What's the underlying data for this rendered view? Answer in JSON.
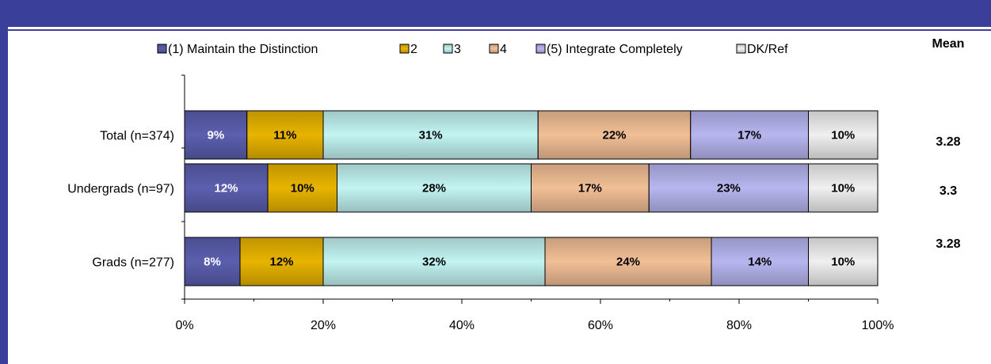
{
  "chart_data": {
    "type": "bar",
    "orientation": "horizontal",
    "stacked": true,
    "percent_stacked": true,
    "categories": [
      "Total (n=374)",
      "Undergrads (n=97)",
      "Grads (n=277)"
    ],
    "series": [
      {
        "name": "(1) Maintain the Distinction",
        "values": [
          9,
          12,
          8
        ],
        "color": "#5b5fae"
      },
      {
        "name": "2",
        "values": [
          11,
          10,
          12
        ],
        "color": "#e8b400"
      },
      {
        "name": "3",
        "values": [
          31,
          28,
          32
        ],
        "color": "#c2f4f2"
      },
      {
        "name": "4",
        "values": [
          22,
          17,
          24
        ],
        "color": "#f2bf96"
      },
      {
        "name": "(5) Integrate Completely",
        "values": [
          17,
          23,
          14
        ],
        "color": "#b7b6f0"
      },
      {
        "name": "DK/Ref",
        "values": [
          10,
          10,
          10
        ],
        "color": "#f0f0f0"
      }
    ],
    "data_labels": [
      [
        "9%",
        "11%",
        "31%",
        "22%",
        "17%",
        "10%"
      ],
      [
        "12%",
        "10%",
        "28%",
        "17%",
        "23%",
        "10%"
      ],
      [
        "8%",
        "12%",
        "32%",
        "24%",
        "14%",
        "10%"
      ]
    ],
    "x_ticks": [
      "0%",
      "20%",
      "40%",
      "60%",
      "80%",
      "100%"
    ],
    "xlim": [
      0,
      100
    ],
    "legend_position": "top",
    "mean": {
      "title": "Mean",
      "values": [
        "3.28",
        "3.3",
        "3.28"
      ]
    },
    "grid": false
  },
  "colors": {
    "frame": "#3a3f9a",
    "axis": "#000000"
  }
}
